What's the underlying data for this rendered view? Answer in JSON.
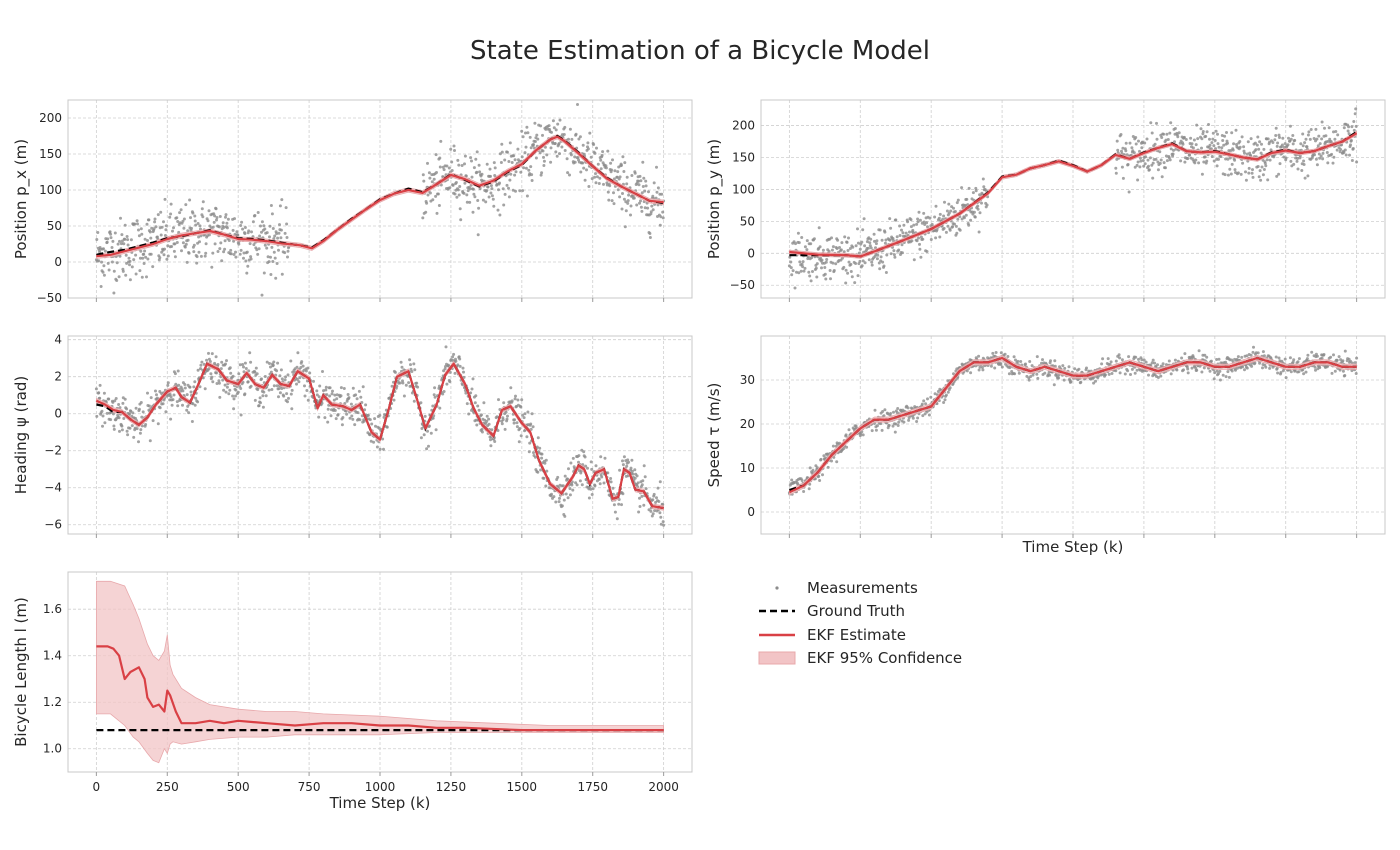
{
  "title": "State Estimation of a Bicycle Model",
  "colors": {
    "measurement": "#8c8c8c",
    "ground_truth": "#000000",
    "ekf": "#d94045",
    "confidence": "#f2c4c6",
    "grid": "#cfcfcf",
    "frame": "#c8c8c8"
  },
  "legend": {
    "placement": "below right column",
    "items": [
      {
        "label": "Measurements",
        "style": "dots"
      },
      {
        "label": "Ground Truth",
        "style": "dashed"
      },
      {
        "label": "EKF Estimate",
        "style": "line"
      },
      {
        "label": "EKF 95% Confidence",
        "style": "band"
      }
    ]
  },
  "chart_data": [
    {
      "type": "line",
      "xlabel": "",
      "ylabel": "Position p_x (m)",
      "xlim": [
        -100,
        2100
      ],
      "ylim": [
        -50,
        225
      ],
      "xticks": [
        0,
        250,
        500,
        750,
        1000,
        1250,
        1500,
        1750,
        2000
      ],
      "yticks": [
        -50,
        0,
        50,
        100,
        150,
        200
      ],
      "ytick_labels": [
        "−50",
        "0",
        "50",
        "100",
        "150",
        "200"
      ],
      "show_xtick_labels": false,
      "grid": true,
      "ground_truth": {
        "x": [
          0,
          50,
          100,
          150,
          200,
          250,
          300,
          350,
          400,
          450,
          500,
          550,
          600,
          650,
          700,
          720,
          760,
          800,
          850,
          900,
          950,
          1000,
          1050,
          1100,
          1150,
          1200,
          1250,
          1300,
          1350,
          1400,
          1450,
          1500,
          1550,
          1600,
          1625,
          1650,
          1700,
          1750,
          1800,
          1850,
          1900,
          1950,
          2000
        ],
        "y": [
          10,
          14,
          17,
          22,
          27,
          33,
          36,
          40,
          44,
          38,
          33,
          32,
          30,
          27,
          24,
          23,
          20,
          30,
          45,
          60,
          73,
          87,
          95,
          102,
          97,
          108,
          122,
          114,
          105,
          112,
          125,
          135,
          155,
          170,
          175,
          169,
          152,
          133,
          117,
          105,
          95,
          85,
          82
        ]
      },
      "estimate": {
        "x": [
          0,
          50,
          100,
          150,
          200,
          250,
          300,
          350,
          400,
          450,
          500,
          550,
          600,
          650,
          700,
          720,
          760,
          800,
          850,
          900,
          950,
          1000,
          1050,
          1100,
          1150,
          1200,
          1250,
          1300,
          1350,
          1400,
          1450,
          1500,
          1550,
          1600,
          1625,
          1650,
          1700,
          1750,
          1800,
          1850,
          1900,
          1950,
          2000
        ],
        "y": [
          8,
          10,
          15,
          20,
          25,
          32,
          37,
          40,
          43,
          38,
          32,
          31,
          29,
          26,
          24,
          23,
          19,
          29,
          45,
          59,
          73,
          86,
          95,
          100,
          96,
          108,
          121,
          115,
          106,
          113,
          126,
          136,
          155,
          170,
          174,
          168,
          151,
          133,
          116,
          105,
          95,
          85,
          83
        ]
      },
      "band_halfwidth": 3,
      "measurement_noise": 22,
      "measurement_noise_segments": [
        {
          "from": 0,
          "to": 680,
          "noise": 22
        },
        {
          "from": 680,
          "to": 1150,
          "noise": 0
        },
        {
          "from": 1150,
          "to": 2000,
          "noise": 20
        }
      ],
      "measurement_count": 1200
    },
    {
      "type": "line",
      "xlabel": "",
      "ylabel": "Position p_y (m)",
      "xlim": [
        -100,
        2100
      ],
      "ylim": [
        -70,
        240
      ],
      "xticks": [
        0,
        250,
        500,
        750,
        1000,
        1250,
        1500,
        1750,
        2000
      ],
      "yticks": [
        -50,
        0,
        50,
        100,
        150,
        200
      ],
      "ytick_labels": [
        "−50",
        "0",
        "50",
        "100",
        "150",
        "200"
      ],
      "show_xtick_labels": false,
      "grid": true,
      "ground_truth": {
        "x": [
          0,
          100,
          200,
          250,
          300,
          400,
          500,
          600,
          700,
          750,
          800,
          850,
          900,
          950,
          1000,
          1050,
          1100,
          1150,
          1200,
          1250,
          1300,
          1350,
          1400,
          1450,
          1500,
          1550,
          1600,
          1650,
          1700,
          1750,
          1800,
          1850,
          1900,
          1950,
          2000
        ],
        "y": [
          -3,
          -3,
          -3,
          -5,
          3,
          20,
          38,
          62,
          95,
          120,
          123,
          133,
          138,
          145,
          138,
          128,
          138,
          155,
          148,
          158,
          165,
          172,
          160,
          158,
          160,
          155,
          150,
          147,
          158,
          162,
          157,
          160,
          168,
          175,
          190
        ]
      },
      "estimate": {
        "x": [
          0,
          100,
          200,
          250,
          300,
          400,
          500,
          600,
          700,
          750,
          800,
          850,
          900,
          950,
          1000,
          1050,
          1100,
          1150,
          1200,
          1250,
          1300,
          1350,
          1400,
          1450,
          1500,
          1550,
          1600,
          1650,
          1700,
          1750,
          1800,
          1850,
          1900,
          1950,
          2000
        ],
        "y": [
          2,
          -2,
          -3,
          -5,
          3,
          20,
          38,
          62,
          94,
          119,
          123,
          133,
          138,
          144,
          137,
          128,
          138,
          154,
          148,
          157,
          165,
          171,
          160,
          158,
          159,
          155,
          150,
          147,
          157,
          161,
          157,
          160,
          168,
          175,
          188
        ]
      },
      "band_halfwidth": 3,
      "measurement_noise_segments": [
        {
          "from": 0,
          "to": 700,
          "noise": 18
        },
        {
          "from": 700,
          "to": 1150,
          "noise": 0
        },
        {
          "from": 1150,
          "to": 2000,
          "noise": 18
        }
      ],
      "measurement_count": 1200
    },
    {
      "type": "line",
      "xlabel": "",
      "ylabel": "Heading ψ (rad)",
      "xlim": [
        -100,
        2100
      ],
      "ylim": [
        -6.5,
        4.2
      ],
      "xticks": [
        0,
        250,
        500,
        750,
        1000,
        1250,
        1500,
        1750,
        2000
      ],
      "yticks": [
        -6,
        -4,
        -2,
        0,
        2,
        4
      ],
      "ytick_labels": [
        "−6",
        "−4",
        "−2",
        "0",
        "2",
        "4"
      ],
      "show_xtick_labels": false,
      "grid": true,
      "ground_truth": {
        "x": [
          0,
          30,
          60,
          90,
          120,
          150,
          180,
          210,
          250,
          280,
          300,
          330,
          360,
          390,
          430,
          460,
          500,
          530,
          560,
          590,
          620,
          650,
          680,
          710,
          750,
          780,
          800,
          830,
          870,
          900,
          930,
          970,
          1000,
          1030,
          1060,
          1100,
          1130,
          1160,
          1200,
          1230,
          1260,
          1300,
          1330,
          1360,
          1400,
          1430,
          1460,
          1500,
          1530,
          1560,
          1600,
          1640,
          1680,
          1700,
          1720,
          1740,
          1760,
          1790,
          1820,
          1840,
          1860,
          1880,
          1900,
          1930,
          1960,
          2000
        ],
        "y": [
          0.5,
          0.4,
          0.1,
          0.1,
          -0.3,
          -0.6,
          -0.2,
          0.5,
          1.2,
          1.4,
          0.9,
          0.6,
          1.6,
          2.7,
          2.4,
          1.8,
          1.6,
          2.2,
          1.6,
          1.4,
          2.1,
          1.6,
          1.5,
          2.3,
          1.9,
          0.3,
          1.0,
          0.5,
          0.4,
          0.2,
          0.5,
          -1.0,
          -1.4,
          0.2,
          2.0,
          2.3,
          0.8,
          -0.8,
          0.5,
          2.1,
          2.7,
          1.6,
          0.3,
          -0.6,
          -1.2,
          0.2,
          0.4,
          -0.5,
          -1.0,
          -2.5,
          -3.8,
          -4.3,
          -3.4,
          -2.8,
          -3.0,
          -3.8,
          -3.2,
          -3.0,
          -4.6,
          -4.5,
          -3.0,
          -3.2,
          -4.1,
          -4.2,
          -5.0,
          -5.1
        ]
      },
      "estimate": {
        "x": [
          0,
          30,
          60,
          90,
          120,
          150,
          180,
          210,
          250,
          280,
          300,
          330,
          360,
          390,
          430,
          460,
          500,
          530,
          560,
          590,
          620,
          650,
          680,
          710,
          750,
          780,
          800,
          830,
          870,
          900,
          930,
          970,
          1000,
          1030,
          1060,
          1100,
          1130,
          1160,
          1200,
          1230,
          1260,
          1300,
          1330,
          1360,
          1400,
          1430,
          1460,
          1500,
          1530,
          1560,
          1600,
          1640,
          1680,
          1700,
          1720,
          1740,
          1760,
          1790,
          1820,
          1840,
          1860,
          1880,
          1900,
          1930,
          1960,
          2000
        ],
        "y": [
          0.7,
          0.5,
          0.2,
          0.1,
          -0.3,
          -0.6,
          -0.2,
          0.5,
          1.2,
          1.4,
          0.9,
          0.6,
          1.6,
          2.7,
          2.4,
          1.8,
          1.6,
          2.2,
          1.6,
          1.4,
          2.1,
          1.6,
          1.5,
          2.3,
          1.9,
          0.3,
          1.0,
          0.5,
          0.4,
          0.2,
          0.5,
          -1.0,
          -1.4,
          0.2,
          2.0,
          2.3,
          0.8,
          -0.8,
          0.5,
          2.1,
          2.7,
          1.6,
          0.3,
          -0.6,
          -1.2,
          0.2,
          0.4,
          -0.5,
          -1.0,
          -2.5,
          -3.8,
          -4.3,
          -3.4,
          -2.8,
          -3.0,
          -3.8,
          -3.2,
          -3.0,
          -4.6,
          -4.5,
          -3.0,
          -3.2,
          -4.1,
          -4.2,
          -5.0,
          -5.1
        ]
      },
      "band_halfwidth": 0.12,
      "measurement_noise_segments": [
        {
          "from": 0,
          "to": 2000,
          "noise": 0.5
        }
      ],
      "measurement_count": 1200
    },
    {
      "type": "line",
      "xlabel": "Time Step (k)",
      "ylabel": "Speed τ (m/s)",
      "xlim": [
        -100,
        2100
      ],
      "ylim": [
        -5,
        40
      ],
      "xticks": [
        0,
        250,
        500,
        750,
        1000,
        1250,
        1500,
        1750,
        2000
      ],
      "yticks": [
        0,
        10,
        20,
        30
      ],
      "ytick_labels": [
        "0",
        "10",
        "20",
        "30"
      ],
      "show_xtick_labels": false,
      "grid": true,
      "ground_truth": {
        "x": [
          0,
          50,
          100,
          150,
          200,
          250,
          300,
          350,
          400,
          450,
          500,
          550,
          600,
          650,
          700,
          750,
          800,
          850,
          900,
          950,
          1000,
          1050,
          1100,
          1150,
          1200,
          1250,
          1300,
          1350,
          1400,
          1450,
          1500,
          1550,
          1600,
          1650,
          1700,
          1750,
          1800,
          1850,
          1900,
          1950,
          2000
        ],
        "y": [
          5,
          6,
          9,
          13,
          16,
          19,
          21,
          21,
          22,
          23,
          24,
          28,
          32,
          34,
          34,
          35,
          33,
          32,
          33,
          32,
          31,
          31,
          32,
          33,
          34,
          33,
          32,
          33,
          34,
          34,
          33,
          33,
          34,
          35,
          34,
          33,
          33,
          34,
          34,
          33,
          33
        ]
      },
      "estimate": {
        "x": [
          0,
          50,
          100,
          150,
          200,
          250,
          300,
          350,
          400,
          450,
          500,
          550,
          600,
          650,
          700,
          750,
          800,
          850,
          900,
          950,
          1000,
          1050,
          1100,
          1150,
          1200,
          1250,
          1300,
          1350,
          1400,
          1450,
          1500,
          1550,
          1600,
          1650,
          1700,
          1750,
          1800,
          1850,
          1900,
          1950,
          2000
        ],
        "y": [
          4.5,
          6,
          9,
          13,
          16,
          19,
          21,
          21,
          22,
          23,
          24,
          28,
          32,
          34,
          34,
          35,
          33,
          32,
          33,
          32,
          31,
          31,
          32,
          33,
          34,
          33,
          32,
          33,
          34,
          34,
          33,
          33,
          34,
          35,
          34,
          33,
          33,
          34,
          34,
          33,
          33
        ]
      },
      "band_halfwidth": 0.6,
      "measurement_noise_segments": [
        {
          "from": 0,
          "to": 2000,
          "noise": 1.0
        }
      ],
      "measurement_count": 1200
    },
    {
      "type": "line",
      "xlabel": "Time Step (k)",
      "ylabel": "Bicycle Length l (m)",
      "xlim": [
        -100,
        2100
      ],
      "ylim": [
        0.9,
        1.76
      ],
      "xticks": [
        0,
        250,
        500,
        750,
        1000,
        1250,
        1500,
        1750,
        2000
      ],
      "xtick_labels": [
        "0",
        "250",
        "500",
        "750",
        "1000",
        "1250",
        "1500",
        "1750",
        "2000"
      ],
      "yticks": [
        1.0,
        1.2,
        1.4,
        1.6
      ],
      "ytick_labels": [
        "1.0",
        "1.2",
        "1.4",
        "1.6"
      ],
      "show_xtick_labels": true,
      "grid": true,
      "ground_truth": {
        "x": [
          0,
          2000
        ],
        "y": [
          1.08,
          1.08
        ]
      },
      "estimate": {
        "x": [
          0,
          40,
          60,
          80,
          100,
          120,
          150,
          170,
          180,
          200,
          220,
          240,
          250,
          260,
          280,
          300,
          350,
          400,
          450,
          500,
          600,
          700,
          800,
          900,
          1000,
          1100,
          1200,
          1300,
          1500,
          1700,
          2000
        ],
        "y": [
          1.44,
          1.44,
          1.43,
          1.4,
          1.3,
          1.33,
          1.35,
          1.3,
          1.22,
          1.18,
          1.19,
          1.16,
          1.25,
          1.23,
          1.16,
          1.11,
          1.11,
          1.12,
          1.11,
          1.12,
          1.11,
          1.1,
          1.11,
          1.11,
          1.1,
          1.1,
          1.09,
          1.09,
          1.08,
          1.08,
          1.08
        ]
      },
      "band": {
        "x": [
          0,
          50,
          100,
          130,
          150,
          180,
          200,
          220,
          240,
          250,
          260,
          270,
          300,
          350,
          400,
          500,
          600,
          700,
          800,
          1000,
          1200,
          1400,
          1600,
          2000
        ],
        "upper": [
          1.72,
          1.72,
          1.7,
          1.62,
          1.56,
          1.45,
          1.4,
          1.38,
          1.42,
          1.49,
          1.36,
          1.32,
          1.26,
          1.22,
          1.19,
          1.17,
          1.16,
          1.16,
          1.15,
          1.14,
          1.12,
          1.11,
          1.1,
          1.1
        ],
        "lower": [
          1.15,
          1.15,
          1.1,
          1.05,
          1.03,
          0.98,
          0.95,
          0.94,
          1.0,
          0.98,
          1.02,
          1.03,
          1.02,
          1.03,
          1.04,
          1.05,
          1.05,
          1.06,
          1.06,
          1.06,
          1.07,
          1.07,
          1.07,
          1.07
        ]
      }
    }
  ]
}
